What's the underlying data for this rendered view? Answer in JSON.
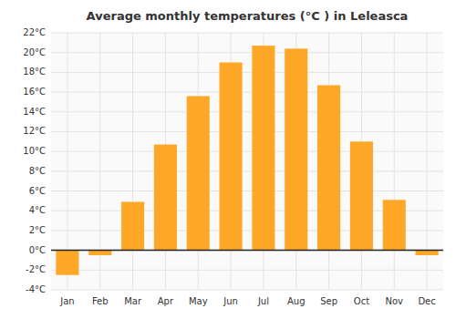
{
  "chart_data": {
    "type": "bar",
    "title": "Average monthly temperatures (°C ) in Leleasca",
    "categories": [
      "Jan",
      "Feb",
      "Mar",
      "Apr",
      "May",
      "Jun",
      "Jul",
      "Aug",
      "Sep",
      "Oct",
      "Nov",
      "Dec"
    ],
    "values": [
      -2.5,
      -0.5,
      4.9,
      10.7,
      15.6,
      19.0,
      20.7,
      20.4,
      16.7,
      11.0,
      5.1,
      -0.5
    ],
    "color": "#FFA726",
    "ylim": [
      -4,
      22
    ],
    "yticks": [
      {
        "value": -4,
        "label": "-4°C"
      },
      {
        "value": -2,
        "label": "-2°C"
      },
      {
        "value": 0,
        "label": "0°C"
      },
      {
        "value": 2,
        "label": "2°C"
      },
      {
        "value": 4,
        "label": "4°C"
      },
      {
        "value": 6,
        "label": "6°C"
      },
      {
        "value": 8,
        "label": "8°C"
      },
      {
        "value": 10,
        "label": "10°C"
      },
      {
        "value": 12,
        "label": "12°C"
      },
      {
        "value": 14,
        "label": "14°C"
      },
      {
        "value": 16,
        "label": "16°C"
      },
      {
        "value": 18,
        "label": "18°C"
      },
      {
        "value": 20,
        "label": "20°C"
      },
      {
        "value": 22,
        "label": "22°C"
      }
    ],
    "grid": true
  }
}
